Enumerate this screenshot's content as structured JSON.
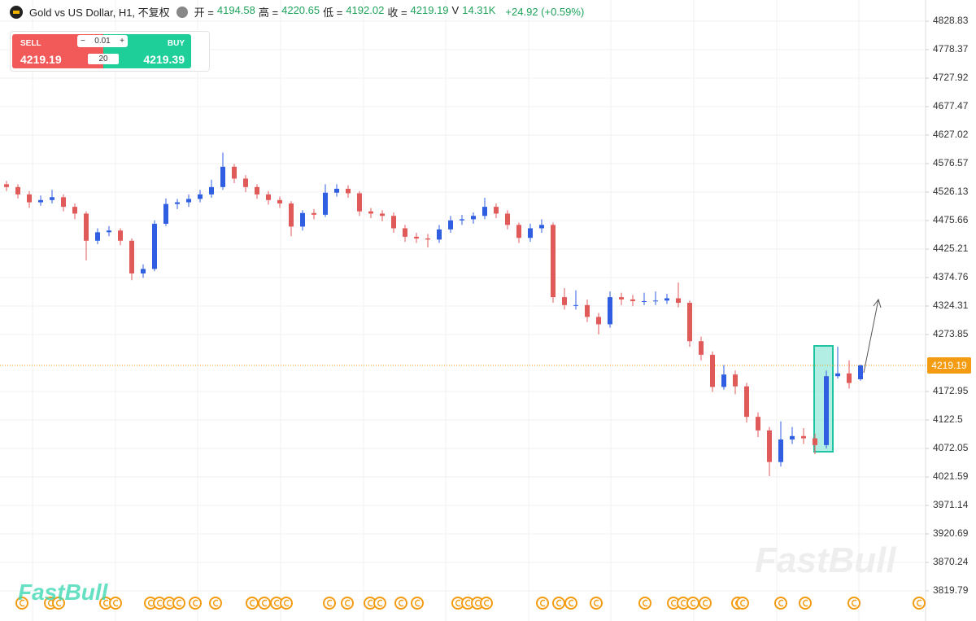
{
  "header": {
    "symbol": "Gold vs US Dollar, H1, 不复权",
    "fields": [
      {
        "label": "开 =",
        "value": 4194.58
      },
      {
        "label": "高 =",
        "value": 4220.65
      },
      {
        "label": "低 =",
        "value": 4192.02
      },
      {
        "label": "收 =",
        "value": 4219.19
      },
      {
        "label": "V",
        "value": "14.31K"
      }
    ],
    "change": "+24.92 (+0.59%)"
  },
  "trade_widget": {
    "sell_label": "SELL",
    "sell_price": 4219.19,
    "buy_label": "BUY",
    "buy_price": 4219.39,
    "quantity": "0.01",
    "leverage": 20
  },
  "watermark": "FastBull",
  "chart_data": {
    "type": "candlestick",
    "up_color": "#2f5fe0",
    "down_color": "#e05a5a",
    "grid": true,
    "ylim": [
      3766.45,
      4866.31
    ],
    "yticks": [
      4828.83,
      4778.37,
      4727.92,
      4677.47,
      4627.02,
      4576.57,
      4526.13,
      4475.66,
      4425.21,
      4374.76,
      4324.31,
      4273.85,
      4172.95,
      4122.5,
      4072.05,
      4021.59,
      3971.14,
      3920.69,
      3870.24,
      3819.79
    ],
    "last_price": 4219.19,
    "open": [
      4540,
      4535,
      4522,
      4508,
      4512,
      4517,
      4500,
      4488,
      4440,
      4455,
      4458,
      4440,
      4382,
      4390,
      4470,
      4505,
      4508,
      4514,
      4522,
      4535,
      4571,
      4550,
      4535,
      4522,
      4512,
      4506,
      4465,
      4489,
      4486,
      4525,
      4532,
      4524,
      4492,
      4488,
      4484,
      4462,
      4447,
      4444,
      4442,
      4460,
      4476,
      4478,
      4484,
      4500,
      4488,
      4468,
      4445,
      4462,
      4468,
      4340,
      4326,
      4326,
      4305,
      4292,
      4340,
      4336,
      4333,
      4333,
      4334,
      4338,
      4330,
      4262,
      4238,
      4181,
      4203,
      4182,
      4128,
      4104,
      4048,
      4088,
      4094,
      4090,
      4078,
      4200,
      4205,
      4194.58
    ],
    "high": [
      4546,
      4540,
      4528,
      4520,
      4530,
      4522,
      4506,
      4492,
      4462,
      4466,
      4462,
      4444,
      4398,
      4476,
      4515,
      4514,
      4522,
      4530,
      4548,
      4596,
      4576,
      4556,
      4540,
      4528,
      4518,
      4510,
      4494,
      4496,
      4540,
      4540,
      4538,
      4528,
      4498,
      4494,
      4490,
      4468,
      4454,
      4452,
      4468,
      4484,
      4486,
      4490,
      4516,
      4506,
      4494,
      4472,
      4470,
      4478,
      4472,
      4356,
      4352,
      4336,
      4312,
      4350,
      4348,
      4344,
      4348,
      4350,
      4346,
      4366,
      4334,
      4270,
      4244,
      4220,
      4210,
      4188,
      4136,
      4110,
      4120,
      4110,
      4108,
      4098,
      4210,
      4252,
      4228,
      4220.65
    ],
    "low": [
      4528,
      4515,
      4498,
      4502,
      4506,
      4492,
      4478,
      4405,
      4434,
      4448,
      4432,
      4370,
      4374,
      4386,
      4466,
      4496,
      4500,
      4508,
      4516,
      4530,
      4542,
      4526,
      4514,
      4504,
      4498,
      4448,
      4458,
      4478,
      4482,
      4518,
      4516,
      4484,
      4480,
      4474,
      4454,
      4438,
      4436,
      4428,
      4436,
      4454,
      4468,
      4470,
      4478,
      4480,
      4460,
      4436,
      4438,
      4454,
      4330,
      4318,
      4318,
      4296,
      4274,
      4286,
      4326,
      4324,
      4326,
      4326,
      4328,
      4322,
      4252,
      4228,
      4172,
      4176,
      4168,
      4118,
      4092,
      4023,
      4040,
      4080,
      4080,
      4062,
      4072,
      4196,
      4178,
      4192.02
    ],
    "close": [
      4535,
      4522,
      4508,
      4512,
      4517,
      4500,
      4488,
      4440,
      4455,
      4458,
      4440,
      4382,
      4390,
      4470,
      4505,
      4508,
      4514,
      4522,
      4535,
      4571,
      4550,
      4535,
      4522,
      4512,
      4506,
      4465,
      4489,
      4486,
      4525,
      4532,
      4524,
      4492,
      4488,
      4484,
      4462,
      4447,
      4444,
      4442,
      4460,
      4476,
      4478,
      4484,
      4500,
      4488,
      4468,
      4445,
      4462,
      4468,
      4340,
      4326,
      4326,
      4305,
      4292,
      4340,
      4336,
      4333,
      4333,
      4334,
      4338,
      4330,
      4262,
      4238,
      4181,
      4203,
      4182,
      4128,
      4104,
      4048,
      4088,
      4094,
      4090,
      4078,
      4200,
      4205,
      4188,
      4219.19
    ]
  }
}
